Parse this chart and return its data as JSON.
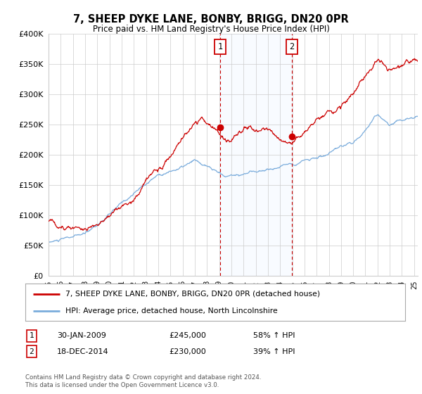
{
  "title": "7, SHEEP DYKE LANE, BONBY, BRIGG, DN20 0PR",
  "subtitle": "Price paid vs. HM Land Registry's House Price Index (HPI)",
  "property_label": "7, SHEEP DYKE LANE, BONBY, BRIGG, DN20 0PR (detached house)",
  "hpi_label": "HPI: Average price, detached house, North Lincolnshire",
  "sale1_label": "30-JAN-2009",
  "sale1_price": "£245,000",
  "sale1_hpi": "58% ↑ HPI",
  "sale2_label": "18-DEC-2014",
  "sale2_price": "£230,000",
  "sale2_hpi": "39% ↑ HPI",
  "footer": "Contains HM Land Registry data © Crown copyright and database right 2024.\nThis data is licensed under the Open Government Licence v3.0.",
  "property_color": "#cc0000",
  "hpi_color": "#7aacdc",
  "shade_color": "#ddeeff",
  "sale1_x": 2009.08,
  "sale2_x": 2014.96,
  "background_color": "#ffffff",
  "ylim": [
    0,
    400000
  ],
  "yticks": [
    0,
    50000,
    100000,
    150000,
    200000,
    250000,
    300000,
    350000,
    400000
  ],
  "xlim": [
    1995,
    2025.3
  ]
}
